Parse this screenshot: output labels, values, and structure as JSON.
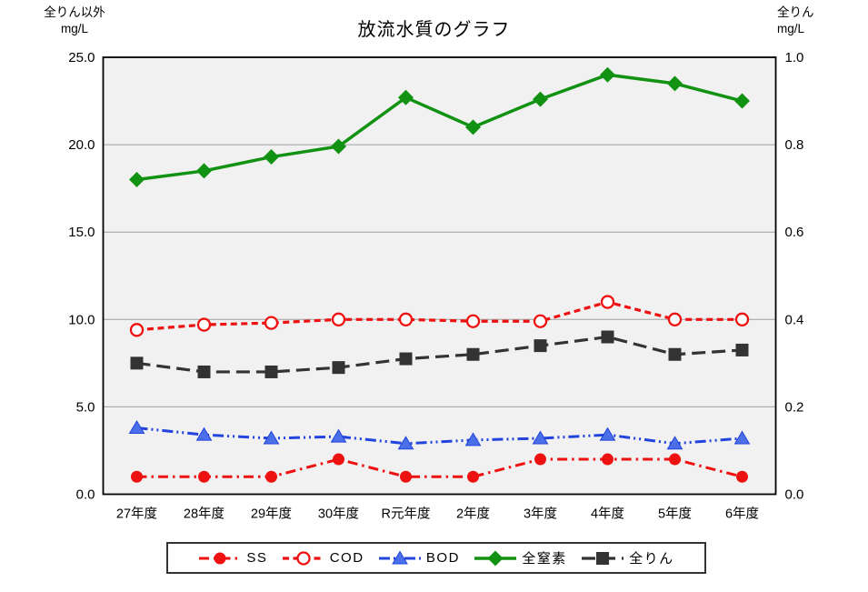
{
  "page": {
    "left_axis_corner": {
      "line1": "全りん以外",
      "line2": "mg/L"
    },
    "right_axis_corner": {
      "line1": "全りん",
      "line2": "mg/L"
    }
  },
  "chart_data": {
    "type": "line",
    "title": "放流水質のグラフ",
    "plot_bg": "#f1f1f1",
    "grid_color": "#a0a0a0",
    "border_color": "#000000",
    "categories": [
      "27年度",
      "28年度",
      "29年度",
      "30年度",
      "R元年度",
      "2年度",
      "3年度",
      "4年度",
      "5年度",
      "6年度"
    ],
    "left_axis": {
      "title": "全りん以外 mg/L",
      "min": 0,
      "max": 25,
      "tick_step": 5,
      "ticks": [
        "0.0",
        "5.0",
        "10.0",
        "15.0",
        "20.0",
        "25.0"
      ]
    },
    "right_axis": {
      "title": "全りん mg/L",
      "min": 0,
      "max": 1.0,
      "tick_step": 0.2,
      "ticks": [
        "0.0",
        "0.2",
        "0.4",
        "0.6",
        "0.8",
        "1.0"
      ]
    },
    "grid": "horizontal",
    "legend_position": "bottom",
    "series": [
      {
        "id": "ss",
        "name": "SS",
        "axis": "left",
        "color": "#ee1111",
        "marker": "circle-filled",
        "dash": "11 5 2.5 5",
        "width": 3,
        "values": [
          1.0,
          1.0,
          1.0,
          2.0,
          1.0,
          1.0,
          2.0,
          2.0,
          2.0,
          1.0
        ]
      },
      {
        "id": "cod",
        "name": "COD",
        "axis": "left",
        "color": "#ee1111",
        "marker": "circle-open",
        "dash": "7 4.5",
        "width": 3.2,
        "values": [
          9.4,
          9.7,
          9.8,
          10.0,
          10.0,
          9.9,
          9.9,
          11.0,
          10.0,
          10.0
        ]
      },
      {
        "id": "bod",
        "name": "BOD",
        "axis": "left",
        "color": "#2244dd",
        "marker": "triangle",
        "marker_fill": "#4a6fe8",
        "dash": "12 4 2 4 2 4",
        "width": 3,
        "values": [
          3.8,
          3.4,
          3.2,
          3.3,
          2.9,
          3.1,
          3.2,
          3.4,
          2.9,
          3.2
        ]
      },
      {
        "id": "tn",
        "name": "全窒素",
        "axis": "left",
        "color": "#129212",
        "marker": "diamond",
        "dash": "",
        "width": 3.5,
        "values": [
          18.0,
          18.5,
          19.3,
          19.9,
          22.7,
          21.0,
          22.6,
          24.0,
          23.5,
          22.5
        ]
      },
      {
        "id": "tp",
        "name": "全りん",
        "axis": "right",
        "color": "#333333",
        "marker": "square",
        "dash": "15 7",
        "width": 3.2,
        "values": [
          0.3,
          0.28,
          0.28,
          0.29,
          0.31,
          0.32,
          0.34,
          0.36,
          0.32,
          0.33
        ]
      }
    ]
  }
}
